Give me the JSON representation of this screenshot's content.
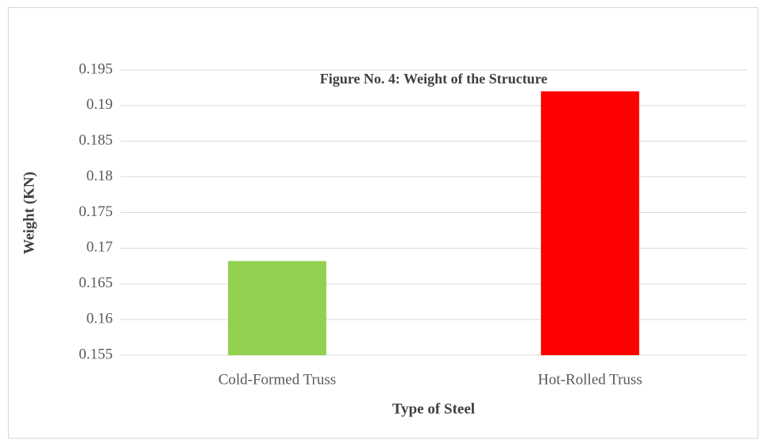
{
  "chart_data": {
    "type": "bar",
    "title": "Figure No. 4: Weight of the Structure",
    "x_label": "Type of Steel",
    "y_label": "Weight (KN)",
    "categories": [
      "Cold-Formed Truss",
      "Hot-Rolled Truss"
    ],
    "values": [
      0.1682,
      0.192
    ],
    "colors": [
      "#92d050",
      "#ff0000"
    ],
    "ylim": [
      0.155,
      0.195
    ],
    "yticks": [
      0.155,
      0.16,
      0.165,
      0.17,
      0.175,
      0.18,
      0.185,
      0.19,
      0.195
    ],
    "grid": true
  }
}
